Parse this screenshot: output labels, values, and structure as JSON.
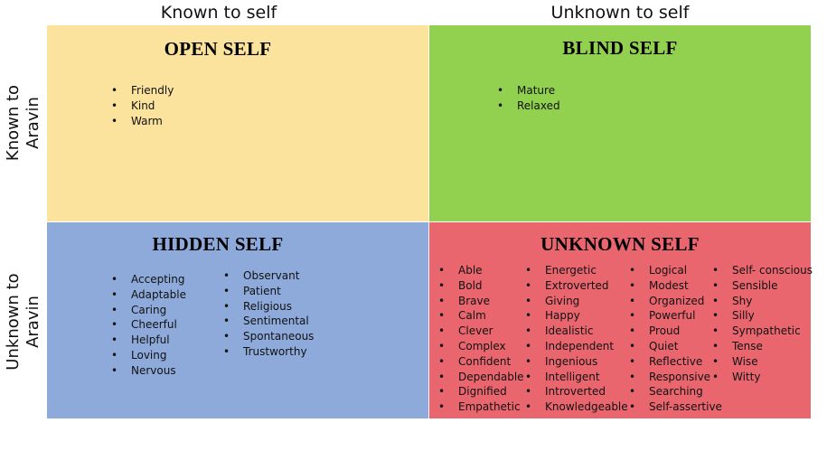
{
  "column_headers": [
    "Known to self",
    "Unknown to self"
  ],
  "row_headers": [
    "Known to Aravin",
    "Unknown to Aravin"
  ],
  "quadrants": [
    {
      "title": "OPEN SELF",
      "columns": [
        [
          "Friendly",
          "Kind",
          "Warm"
        ]
      ]
    },
    {
      "title": "BLIND SELF",
      "columns": [
        [
          "Mature",
          "Relaxed"
        ]
      ]
    },
    {
      "title": "HIDDEN SELF",
      "columns": [
        [
          "Accepting",
          "Adaptable",
          "Caring",
          "Cheerful",
          "Helpful",
          "Loving",
          "Nervous"
        ],
        [
          "Observant",
          "Patient",
          "Religious",
          "Sentimental",
          "Spontaneous",
          "Trustworthy"
        ]
      ]
    },
    {
      "title": "UNKNOWN SELF",
      "columns": [
        [
          "Able",
          "Bold",
          "Brave",
          "Calm",
          "Clever",
          "Complex",
          "Confident",
          "Dependable",
          "Dignified",
          "Empathetic"
        ],
        [
          "Energetic",
          "Extroverted",
          "Giving",
          "Happy",
          "Idealistic",
          "Independent",
          "Ingenious",
          "Intelligent",
          "Introverted",
          "Knowledgeable"
        ],
        [
          "Logical",
          "Modest",
          "Organized",
          "Powerful",
          "Proud",
          "Quiet",
          "Reflective",
          "Responsive",
          "Searching",
          "Self-assertive"
        ],
        [
          "Self- conscious",
          "Sensible",
          "Shy",
          "Silly",
          "Sympathetic",
          "Tense",
          "Wise",
          "Witty"
        ]
      ]
    }
  ]
}
